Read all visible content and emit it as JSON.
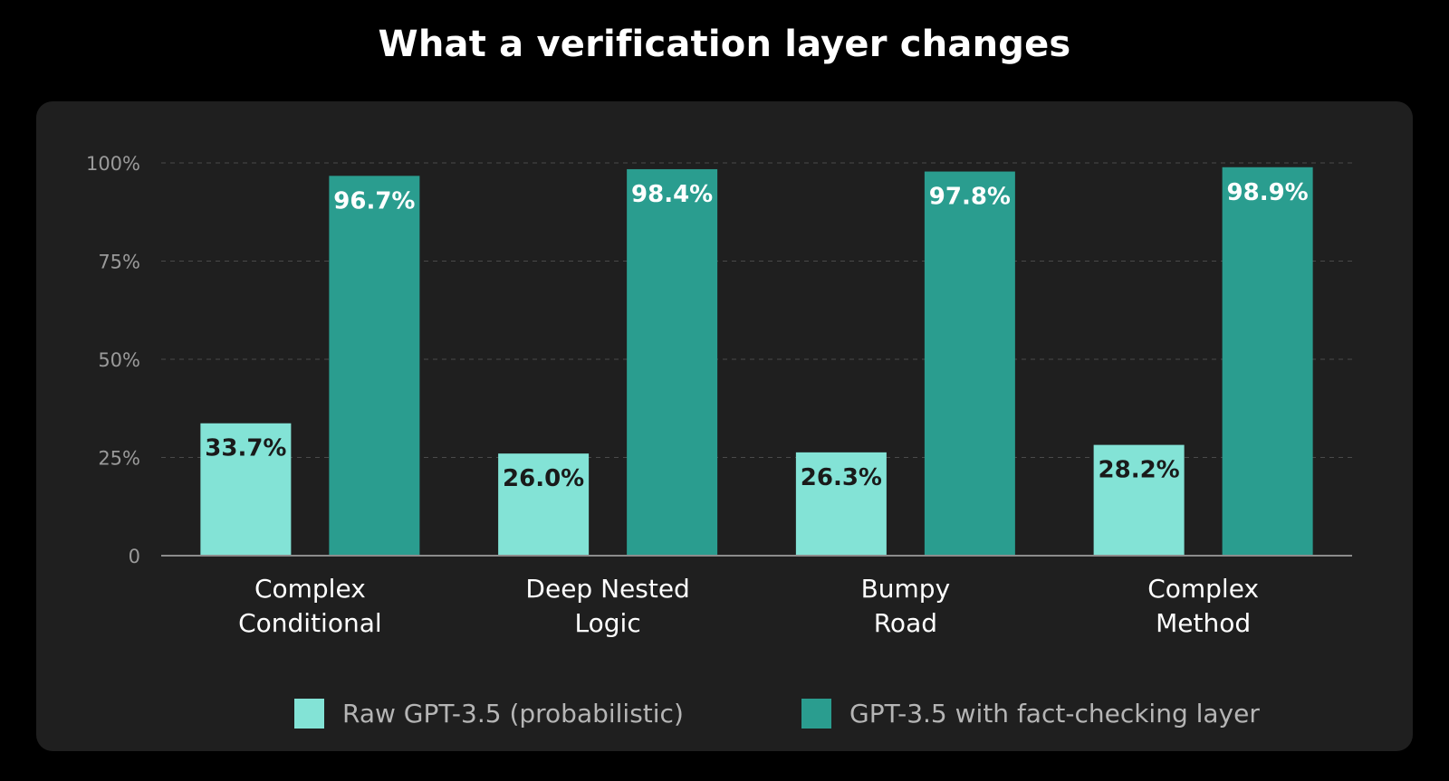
{
  "title": "What a verification layer changes",
  "colors": {
    "background": "#000000",
    "panel": "#1f1f1f",
    "raw": "#83e3d6",
    "verified": "#2a9d8f",
    "grid": "#4a4a4a",
    "axis": "#8c8c8c"
  },
  "legend": [
    {
      "label": "Raw GPT-3.5 (probabilistic)",
      "color": "#83e3d6"
    },
    {
      "label": "GPT-3.5 with fact-checking layer",
      "color": "#2a9d8f"
    }
  ],
  "chart_data": {
    "type": "bar",
    "title": "What a verification layer changes",
    "categories": [
      [
        "Complex",
        "Conditional"
      ],
      [
        "Deep Nested",
        "Logic"
      ],
      [
        "Bumpy",
        "Road"
      ],
      [
        "Complex",
        "Method"
      ]
    ],
    "series": [
      {
        "name": "Raw GPT-3.5 (probabilistic)",
        "values": [
          33.7,
          26.0,
          26.3,
          28.2
        ],
        "labels": [
          "33.7%",
          "26.0%",
          "26.3%",
          "28.2%"
        ]
      },
      {
        "name": "GPT-3.5 with fact-checking layer",
        "values": [
          96.7,
          98.4,
          97.8,
          98.9
        ],
        "labels": [
          "96.7%",
          "98.4%",
          "97.8%",
          "98.9%"
        ]
      }
    ],
    "ylim": [
      0,
      100
    ],
    "yticks": [
      0,
      25,
      50,
      75,
      100
    ],
    "ytick_labels": [
      "0",
      "25%",
      "50%",
      "75%",
      "100%"
    ],
    "grid": true,
    "legend_position": "bottom"
  }
}
